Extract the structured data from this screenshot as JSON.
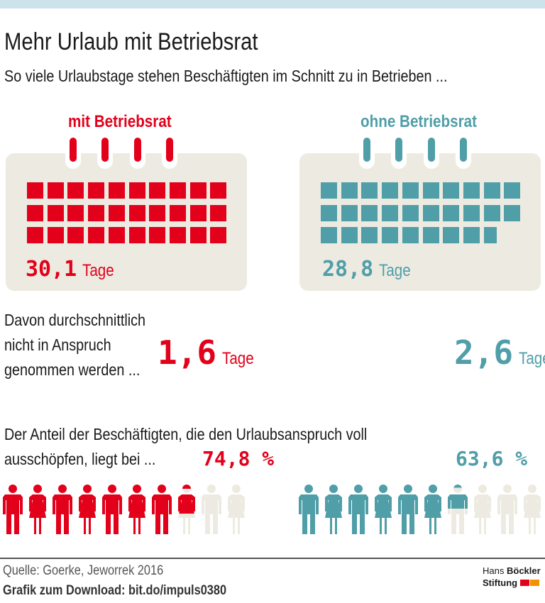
{
  "title": "Mehr Urlaub mit Betriebsrat",
  "subtitle": "So viele Urlaubstage stehen Beschäftigten im Schnitt zu in Betrieben ...",
  "colors": {
    "with": "#e2001a",
    "without": "#4f9ea8",
    "empty": "#edebe1",
    "topbar": "#cde3ec"
  },
  "chart_data": {
    "type": "pictogram",
    "title": "Mehr Urlaub mit Betriebsrat",
    "groups": [
      {
        "name": "mit Betriebsrat",
        "vacation_days": 30.1,
        "vacation_days_label": "30,1",
        "unused_days": 1.6,
        "unused_days_label": "1,6",
        "full_use_share_pct": 74.8,
        "full_use_share_label": "74,8 %"
      },
      {
        "name": "ohne Betriebsrat",
        "vacation_days": 28.8,
        "vacation_days_label": "28,8",
        "unused_days": 2.6,
        "unused_days_label": "2,6",
        "full_use_share_pct": 63.6,
        "full_use_share_label": "63,6 %"
      }
    ],
    "unit": "Tage"
  },
  "unused_text": [
    "Davon durchschnittlich",
    "nicht in Anspruch",
    "genommen werden ..."
  ],
  "share_text": [
    "Der Anteil der Beschäftigten, die den Urlaubsanspruch voll",
    "ausschöpfen, liegt bei ..."
  ],
  "source": "Quelle: Goerke, Jeworrek 2016",
  "download": "Grafik zum Download: bit.do/impuls0380",
  "logo": {
    "line1a": "Hans",
    "line1b": "Böckler",
    "line2": "Stiftung"
  }
}
